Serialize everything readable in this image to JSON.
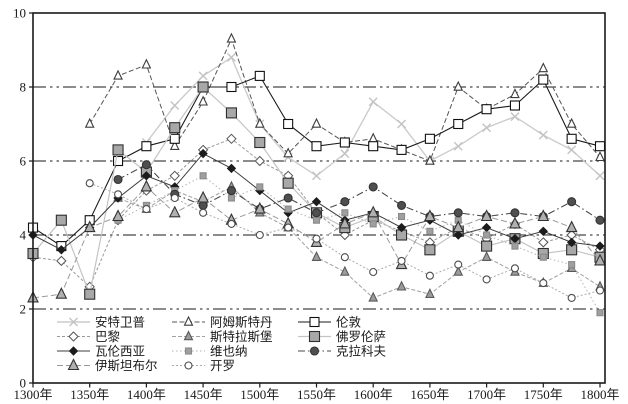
{
  "chart_data": {
    "type": "line",
    "title": "",
    "xlabel": "",
    "ylabel": "",
    "xlim": [
      1300,
      1800
    ],
    "ylim": [
      0,
      10
    ],
    "grid": "on",
    "grid_values": [
      2,
      4,
      6,
      8
    ],
    "grid_style": "dash-dot",
    "legend_position": "inside-bottom-left",
    "x_tick_labels": [
      "1300年",
      "1350年",
      "1400年",
      "1450年",
      "1500年",
      "1550年",
      "1600年",
      "1650年",
      "1700年",
      "1750年",
      "1800年"
    ],
    "y_tick_labels": [
      "0",
      "2",
      "4",
      "6",
      "8",
      "10"
    ],
    "x": [
      1300,
      1325,
      1350,
      1375,
      1400,
      1425,
      1450,
      1475,
      1500,
      1525,
      1550,
      1575,
      1600,
      1625,
      1650,
      1675,
      1700,
      1725,
      1750,
      1775,
      1800
    ],
    "series": [
      {
        "key": "antwerp",
        "label": "安特卫普",
        "marker": {
          "shape": "x",
          "size": 8,
          "stroke": "#c3c3c3",
          "fill": "none"
        },
        "line": {
          "color": "#cccccc",
          "width": 1.4,
          "dash": ""
        },
        "values": [
          null,
          null,
          null,
          null,
          6.5,
          7.5,
          8.3,
          8.8,
          7.0,
          6.1,
          5.6,
          6.2,
          7.6,
          7.0,
          6.0,
          6.4,
          6.9,
          7.2,
          6.7,
          6.3,
          5.6
        ]
      },
      {
        "key": "amsterdam",
        "label": "阿姆斯特丹",
        "marker": {
          "shape": "triangle",
          "size": 8,
          "stroke": "#3d3d3d",
          "fill": "#ffffff"
        },
        "line": {
          "color": "#555555",
          "width": 1,
          "dash": "5 2.5"
        },
        "values": [
          null,
          null,
          7.0,
          8.3,
          8.6,
          6.4,
          7.6,
          9.3,
          7.0,
          6.2,
          7.0,
          6.5,
          6.6,
          6.3,
          6.0,
          8.0,
          7.4,
          7.8,
          8.5,
          7.0,
          6.1
        ]
      },
      {
        "key": "london",
        "label": "伦敦",
        "marker": {
          "shape": "square",
          "size": 9,
          "stroke": "#101010",
          "fill": "#ffffff"
        },
        "line": {
          "color": "#1a1a1a",
          "width": 1.1,
          "dash": ""
        },
        "values": [
          4.2,
          3.7,
          4.4,
          6.0,
          6.4,
          6.6,
          8.0,
          8.0,
          8.3,
          7.0,
          6.4,
          6.5,
          6.4,
          6.3,
          6.6,
          7.0,
          7.4,
          7.5,
          8.2,
          6.6,
          6.4
        ]
      },
      {
        "key": "paris",
        "label": "巴黎",
        "marker": {
          "shape": "diamond",
          "size": 7,
          "stroke": "#555555",
          "fill": "#ffffff"
        },
        "line": {
          "color": "#9a9a9a",
          "width": 1,
          "dash": "3 2"
        },
        "values": [
          3.4,
          3.3,
          2.6,
          4.4,
          5.2,
          5.6,
          6.3,
          6.6,
          6.0,
          5.6,
          4.6,
          4.0,
          4.4,
          4.1,
          3.8,
          4.2,
          3.9,
          4.3,
          3.8,
          4.0,
          3.6
        ]
      },
      {
        "key": "strasbourg",
        "label": "斯特拉斯堡",
        "marker": {
          "shape": "triangle",
          "size": 8,
          "stroke": "#5a5a5a",
          "fill": "#9c9c9c"
        },
        "line": {
          "color": "#a0a0a0",
          "width": 1,
          "dash": "4 2"
        },
        "values": [
          null,
          null,
          4.2,
          5.0,
          4.7,
          5.2,
          4.9,
          5.3,
          4.6,
          4.2,
          3.4,
          3.0,
          2.3,
          2.6,
          2.4,
          3.0,
          3.4,
          3.0,
          2.7,
          3.1,
          2.6
        ]
      },
      {
        "key": "florence",
        "label": "佛罗伦萨",
        "marker": {
          "shape": "square",
          "size": 10,
          "stroke": "#2e2e2e",
          "fill": "#a8a8a8"
        },
        "line": {
          "color": "#c4c4c4",
          "width": 1.2,
          "dash": ""
        },
        "values": [
          3.5,
          4.4,
          2.4,
          6.3,
          5.7,
          6.9,
          8.0,
          7.3,
          6.5,
          5.4,
          4.6,
          4.2,
          4.5,
          4.0,
          3.6,
          4.1,
          3.7,
          3.9,
          3.5,
          3.6,
          3.4
        ]
      },
      {
        "key": "valencia",
        "label": "瓦伦西亚",
        "marker": {
          "shape": "diamond",
          "size": 6,
          "stroke": "#1c1c1c",
          "fill": "#1c1c1c"
        },
        "line": {
          "color": "#3c3c3c",
          "width": 1,
          "dash": ""
        },
        "values": [
          4.0,
          3.6,
          4.2,
          5.0,
          5.6,
          5.3,
          6.2,
          5.8,
          5.2,
          4.6,
          4.9,
          4.4,
          4.6,
          4.2,
          4.4,
          4.0,
          4.2,
          3.9,
          4.1,
          3.8,
          3.7
        ]
      },
      {
        "key": "vienna",
        "label": "维也纳",
        "marker": {
          "shape": "square",
          "size": 6,
          "stroke": "#8a8a8a",
          "fill": "#9f9f9f"
        },
        "line": {
          "color": "#b2b2b2",
          "width": 1,
          "dash": "1.5 2.5"
        },
        "values": [
          null,
          null,
          null,
          4.4,
          4.8,
          5.2,
          5.6,
          5.0,
          5.3,
          4.7,
          4.4,
          4.6,
          4.3,
          4.5,
          4.1,
          4.4,
          4.0,
          3.7,
          3.4,
          3.2,
          1.9
        ]
      },
      {
        "key": "krakow",
        "label": "克拉科夫",
        "marker": {
          "shape": "circle",
          "size": 8,
          "stroke": "#333333",
          "fill": "#4f4f4f"
        },
        "line": {
          "color": "#4a4a4a",
          "width": 1.1,
          "dash": "7 3 1.5 3"
        },
        "values": [
          null,
          null,
          null,
          5.5,
          5.9,
          5.1,
          4.8,
          5.2,
          4.7,
          5.0,
          4.6,
          4.9,
          5.3,
          4.8,
          4.5,
          4.6,
          4.5,
          4.6,
          4.5,
          4.9,
          4.4
        ]
      },
      {
        "key": "istanbul",
        "label": "伊斯坦布尔",
        "marker": {
          "shape": "triangle",
          "size": 10,
          "stroke": "#333333",
          "fill": "#b0b0b0"
        },
        "line": {
          "color": "#9a9a9a",
          "width": 1,
          "dash": "6 3"
        },
        "values": [
          2.3,
          2.4,
          4.2,
          4.5,
          5.3,
          4.6,
          5.0,
          4.4,
          4.7,
          4.3,
          3.8,
          4.3,
          4.6,
          3.2,
          4.5,
          4.2,
          4.5,
          4.3,
          4.5,
          4.2,
          3.3
        ]
      },
      {
        "key": "cairo",
        "label": "开罗",
        "marker": {
          "shape": "circle",
          "size": 7,
          "stroke": "#4d4d4d",
          "fill": "#ffffff"
        },
        "line": {
          "color": "#ababab",
          "width": 1,
          "dash": "2 2"
        },
        "values": [
          null,
          null,
          5.4,
          5.1,
          4.7,
          5.0,
          4.6,
          4.3,
          4.0,
          4.2,
          3.9,
          3.4,
          3.0,
          3.3,
          2.9,
          3.2,
          2.8,
          3.1,
          2.7,
          2.3,
          2.5
        ]
      }
    ],
    "axis_color": "#1a1a1a"
  }
}
